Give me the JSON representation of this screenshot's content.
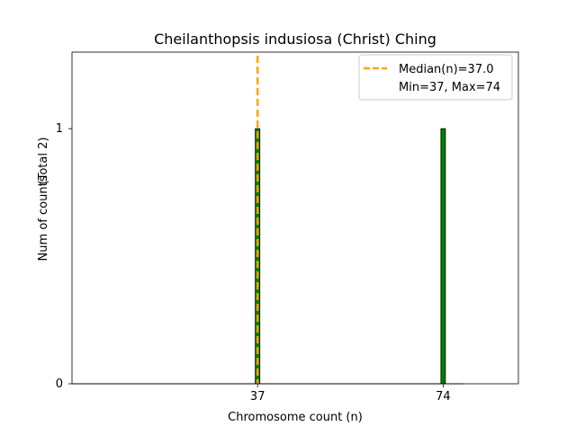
{
  "chart_data": {
    "type": "bar",
    "title": "Cheilanthopsis indusiosa (Christ) Ching",
    "xlabel": "Chromosome count (n)",
    "ylabel": "Num of counts",
    "ylabel_extra": "(Total 2)",
    "x": [
      37,
      74
    ],
    "values": [
      1,
      1
    ],
    "xlim": [
      0,
      89
    ],
    "ylim": [
      0,
      1.3
    ],
    "xticks": [
      37,
      74
    ],
    "yticks": [
      0,
      1
    ],
    "bar_color": "#008000",
    "median": {
      "value": 37.0,
      "label": "Median(n)=37.0",
      "color": "#FFA500"
    },
    "legend": {
      "position": "top-right",
      "entries": [
        "Median(n)=37.0",
        "Min=37, Max=74"
      ]
    }
  }
}
